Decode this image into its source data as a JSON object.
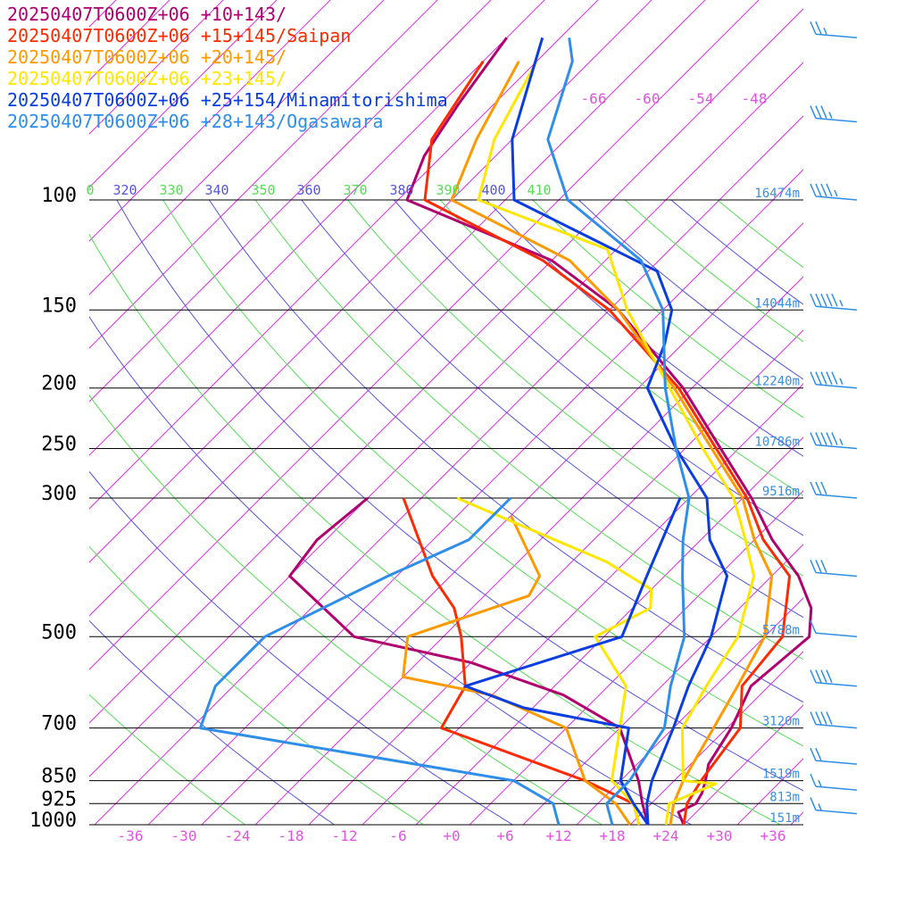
{
  "legend": [
    {
      "label": "20250407T0600Z+06 +10+143/",
      "color": "#b0006e"
    },
    {
      "label": "20250407T0600Z+06 +15+145/Saipan",
      "color": "#ff2a00"
    },
    {
      "label": "20250407T0600Z+06 +20+145/",
      "color": "#ff9900"
    },
    {
      "label": "20250407T0600Z+06 +23+145/",
      "color": "#ffe600"
    },
    {
      "label": "20250407T0600Z+06 +25+154/Minamitorishima",
      "color": "#0a3de0"
    },
    {
      "label": "20250407T0600Z+06 +28+143/Ogasawara",
      "color": "#2f8ee8"
    }
  ],
  "chart_data": {
    "type": "line",
    "skewt": true,
    "pressure_levels": [
      100,
      150,
      200,
      250,
      300,
      500,
      700,
      850,
      925,
      1000
    ],
    "height_labels": [
      {
        "p": 100,
        "text": "16474m"
      },
      {
        "p": 150,
        "text": "14044m"
      },
      {
        "p": 200,
        "text": "12240m"
      },
      {
        "p": 250,
        "text": "10786m"
      },
      {
        "p": 300,
        "text": "9516m"
      },
      {
        "p": 500,
        "text": "5788m"
      },
      {
        "p": 700,
        "text": "3120m"
      },
      {
        "p": 850,
        "text": "1519m"
      },
      {
        "p": 925,
        "text": "813m"
      },
      {
        "p": 1000,
        "text": "151m"
      }
    ],
    "x_ticks": [
      "-36",
      "-30",
      "-24",
      "-18",
      "-12",
      "-6",
      "+0",
      "+6",
      "+12",
      "+18",
      "+24",
      "+30",
      "+36"
    ],
    "x_tick_values": [
      -36,
      -30,
      -24,
      -18,
      -12,
      -6,
      0,
      6,
      12,
      18,
      24,
      30,
      36
    ],
    "isotherm_labels": [
      "-66",
      "-60",
      "-54",
      "-48"
    ],
    "theta_labels": [
      {
        "text": "0",
        "color": "#55dd55"
      },
      {
        "text": "320",
        "color": "#5555dd"
      },
      {
        "text": "330",
        "color": "#55dd55"
      },
      {
        "text": "340",
        "color": "#5555dd"
      },
      {
        "text": "350",
        "color": "#55dd55"
      },
      {
        "text": "360",
        "color": "#5555dd"
      },
      {
        "text": "370",
        "color": "#55dd55"
      },
      {
        "text": "380",
        "color": "#5555dd"
      },
      {
        "text": "390",
        "color": "#55dd55"
      },
      {
        "text": "400",
        "color": "#5555dd"
      },
      {
        "text": "410",
        "color": "#55dd55"
      }
    ],
    "xlim": [
      -40,
      40
    ],
    "colors": {
      "isotherm": "#dd33dd",
      "theta_a": "#5555dd",
      "theta_b": "#55dd55",
      "height_label": "#3a8ee0",
      "tick": "#e055e0"
    },
    "series": [
      {
        "name": "20250407T0600Z+06 +10+143/",
        "color": "#b0006e",
        "points": [
          [
            1000,
            26
          ],
          [
            955,
            24
          ],
          [
            925,
            25
          ],
          [
            890,
            24.5
          ],
          [
            850,
            23.5
          ],
          [
            800,
            22
          ],
          [
            700,
            20.5
          ],
          [
            600,
            18
          ],
          [
            500,
            19
          ],
          [
            450,
            16
          ],
          [
            400,
            11
          ],
          [
            350,
            4
          ],
          [
            300,
            -3
          ],
          [
            250,
            -12
          ],
          [
            200,
            -23
          ],
          [
            150,
            -39
          ],
          [
            125,
            -52
          ],
          [
            100,
            -75
          ],
          [
            85,
            -78
          ],
          [
            70,
            -80
          ],
          [
            55,
            -82
          ]
        ],
        "dew": [
          [
            1000,
            22
          ],
          [
            925,
            19
          ],
          [
            850,
            16
          ],
          [
            700,
            8
          ],
          [
            620,
            -2
          ],
          [
            550,
            -16
          ],
          [
            500,
            -32
          ],
          [
            400,
            -46
          ],
          [
            350,
            -47
          ],
          [
            300,
            -46
          ]
        ]
      },
      {
        "name": "20250407T0600Z+06 +15+145/Saipan",
        "color": "#ff2a00",
        "points": [
          [
            1000,
            26
          ],
          [
            925,
            24
          ],
          [
            850,
            23
          ],
          [
            700,
            21.5
          ],
          [
            600,
            17
          ],
          [
            500,
            16
          ],
          [
            400,
            10
          ],
          [
            350,
            3
          ],
          [
            300,
            -3.5
          ],
          [
            250,
            -12.5
          ],
          [
            200,
            -23.5
          ],
          [
            150,
            -40
          ],
          [
            125,
            -53
          ],
          [
            100,
            -73
          ],
          [
            80,
            -79
          ],
          [
            60,
            -82
          ]
        ],
        "dew": [
          [
            1000,
            21
          ],
          [
            925,
            18
          ],
          [
            850,
            10
          ],
          [
            700,
            -12
          ],
          [
            600,
            -14
          ],
          [
            500,
            -20
          ],
          [
            450,
            -24
          ],
          [
            400,
            -30
          ],
          [
            300,
            -42
          ]
        ]
      },
      {
        "name": "20250407T0600Z+06 +20+145/",
        "color": "#ff9900",
        "points": [
          [
            1000,
            24.5
          ],
          [
            925,
            22.5
          ],
          [
            850,
            21
          ],
          [
            700,
            18.5
          ],
          [
            600,
            16.5
          ],
          [
            500,
            14
          ],
          [
            400,
            8
          ],
          [
            350,
            2
          ],
          [
            300,
            -4
          ],
          [
            250,
            -13
          ],
          [
            200,
            -24
          ],
          [
            150,
            -39
          ],
          [
            125,
            -50
          ],
          [
            100,
            -70
          ],
          [
            80,
            -74
          ],
          [
            60,
            -78
          ]
        ],
        "dew": [
          [
            1000,
            20
          ],
          [
            925,
            16
          ],
          [
            850,
            10
          ],
          [
            700,
            2
          ],
          [
            620,
            -10
          ],
          [
            580,
            -22
          ],
          [
            500,
            -26
          ],
          [
            430,
            -17
          ],
          [
            400,
            -18
          ],
          [
            320,
            -28
          ]
        ]
      },
      {
        "name": "20250407T0600Z+06 +23+145/",
        "color": "#ffe600",
        "points": [
          [
            1000,
            24
          ],
          [
            925,
            22
          ],
          [
            860,
            25
          ],
          [
            850,
            21
          ],
          [
            700,
            15
          ],
          [
            600,
            13
          ],
          [
            500,
            11
          ],
          [
            400,
            6
          ],
          [
            350,
            1
          ],
          [
            300,
            -5
          ],
          [
            250,
            -14
          ],
          [
            200,
            -24.5
          ],
          [
            150,
            -38
          ],
          [
            120,
            -47
          ],
          [
            100,
            -67
          ],
          [
            80,
            -72
          ],
          [
            60,
            -76
          ]
        ],
        "dew": [
          [
            1000,
            21
          ],
          [
            925,
            18
          ],
          [
            850,
            13
          ],
          [
            700,
            8
          ],
          [
            600,
            4
          ],
          [
            500,
            -5
          ],
          [
            450,
            -2
          ],
          [
            420,
            -4
          ],
          [
            380,
            -12
          ],
          [
            300,
            -36
          ]
        ]
      },
      {
        "name": "20250407T0600Z+06 +25+154/Minamitorishima",
        "color": "#0a3de0",
        "points": [
          [
            1000,
            22
          ],
          [
            925,
            19.5
          ],
          [
            850,
            17.5
          ],
          [
            700,
            14
          ],
          [
            600,
            11
          ],
          [
            500,
            8
          ],
          [
            400,
            3
          ],
          [
            350,
            -3
          ],
          [
            300,
            -8
          ],
          [
            250,
            -17
          ],
          [
            200,
            -27
          ],
          [
            170,
            -30
          ],
          [
            150,
            -33
          ],
          [
            130,
            -39
          ],
          [
            100,
            -63
          ],
          [
            80,
            -70
          ],
          [
            55,
            -78
          ]
        ],
        "dew": [
          [
            1000,
            22
          ],
          [
            925,
            18
          ],
          [
            850,
            14
          ],
          [
            700,
            9
          ],
          [
            650,
            -5
          ],
          [
            600,
            -14
          ],
          [
            500,
            -2
          ],
          [
            400,
            -6
          ],
          [
            300,
            -11
          ]
        ]
      },
      {
        "name": "20250407T0600Z+06 +28+143/Ogasawara",
        "color": "#2f8ee8",
        "points": [
          [
            1000,
            18
          ],
          [
            925,
            15
          ],
          [
            850,
            15
          ],
          [
            700,
            13
          ],
          [
            600,
            9
          ],
          [
            500,
            5
          ],
          [
            400,
            -2
          ],
          [
            350,
            -6
          ],
          [
            300,
            -10
          ],
          [
            250,
            -17
          ],
          [
            200,
            -25
          ],
          [
            150,
            -34
          ],
          [
            125,
            -42
          ],
          [
            100,
            -57
          ],
          [
            80,
            -66
          ],
          [
            60,
            -72
          ],
          [
            55,
            -75
          ]
        ],
        "dew": [
          [
            1000,
            12
          ],
          [
            925,
            9
          ],
          [
            850,
            2
          ],
          [
            700,
            -39
          ],
          [
            600,
            -42
          ],
          [
            500,
            -42
          ],
          [
            400,
            -35
          ],
          [
            350,
            -30
          ],
          [
            300,
            -30
          ]
        ]
      }
    ],
    "wind_barbs": [
      {
        "p": 100,
        "speed": 45
      },
      {
        "p": 150,
        "speed": 55
      },
      {
        "p": 200,
        "speed": 55
      },
      {
        "p": 250,
        "speed": 55
      },
      {
        "p": 300,
        "speed": 30
      },
      {
        "p": 400,
        "speed": 30
      },
      {
        "p": 500,
        "speed": 10
      },
      {
        "p": 600,
        "speed": 40
      },
      {
        "p": 700,
        "speed": 40
      },
      {
        "p": 800,
        "speed": 20
      },
      {
        "p": 880,
        "speed": 15
      },
      {
        "p": 960,
        "speed": 15
      },
      {
        "p": 55,
        "speed": 25
      },
      {
        "p": 75,
        "speed": 35
      }
    ]
  }
}
